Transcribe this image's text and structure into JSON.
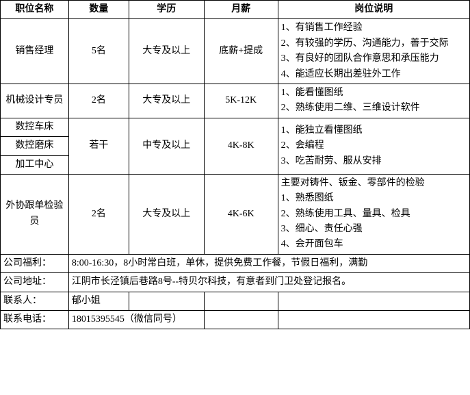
{
  "headers": {
    "position": "职位名称",
    "quantity": "数量",
    "education": "学历",
    "salary": "月薪",
    "description": "岗位说明"
  },
  "rows": {
    "sales_manager": {
      "position": "销售经理",
      "quantity": "5名",
      "education": "大专及以上",
      "salary": "底薪+提成",
      "description": "1、有销售工作经验\n2、有较强的学历、沟通能力，善于交际\n3、有良好的团队合作意思和承压能力\n4、能适应长期出差驻外工作"
    },
    "mechanical_designer": {
      "position": "机械设计专员",
      "quantity": "2名",
      "education": "大专及以上",
      "salary": "5K-12K",
      "description": "1、能看懂图纸\n2、熟练使用二维、三维设计软件"
    },
    "cnc_group": {
      "positions": {
        "lathe": "数控车床",
        "grinder": "数控磨床",
        "center": "加工中心"
      },
      "quantity": "若干",
      "education": "中专及以上",
      "salary": "4K-8K",
      "description": "1、能独立看懂图纸\n2、会编程\n3、吃苦耐劳、服从安排"
    },
    "inspector": {
      "position": "外协跟单检验员",
      "quantity": "2名",
      "education": "大专及以上",
      "salary": "4K-6K",
      "description": "主要对铸件、钣金、零部件的检验\n1、熟悉图纸\n2、熟练使用工具、量具、检具\n3、细心、责任心强\n4、会开面包车"
    }
  },
  "footer": {
    "benefits_label": "公司福利：",
    "benefits_value": "8:00-16:30，8小时常白班，单休，提供免费工作餐，节假日福利，满勤",
    "address_label": "公司地址：",
    "address_value": "江阴市长泾镇后巷路8号--特贝尔科技，有意者到门卫处登记报名。",
    "contact_label": "联系人：",
    "contact_value": "郁小姐",
    "phone_label": "联系电话：",
    "phone_value": "18015395545（微信同号）"
  }
}
